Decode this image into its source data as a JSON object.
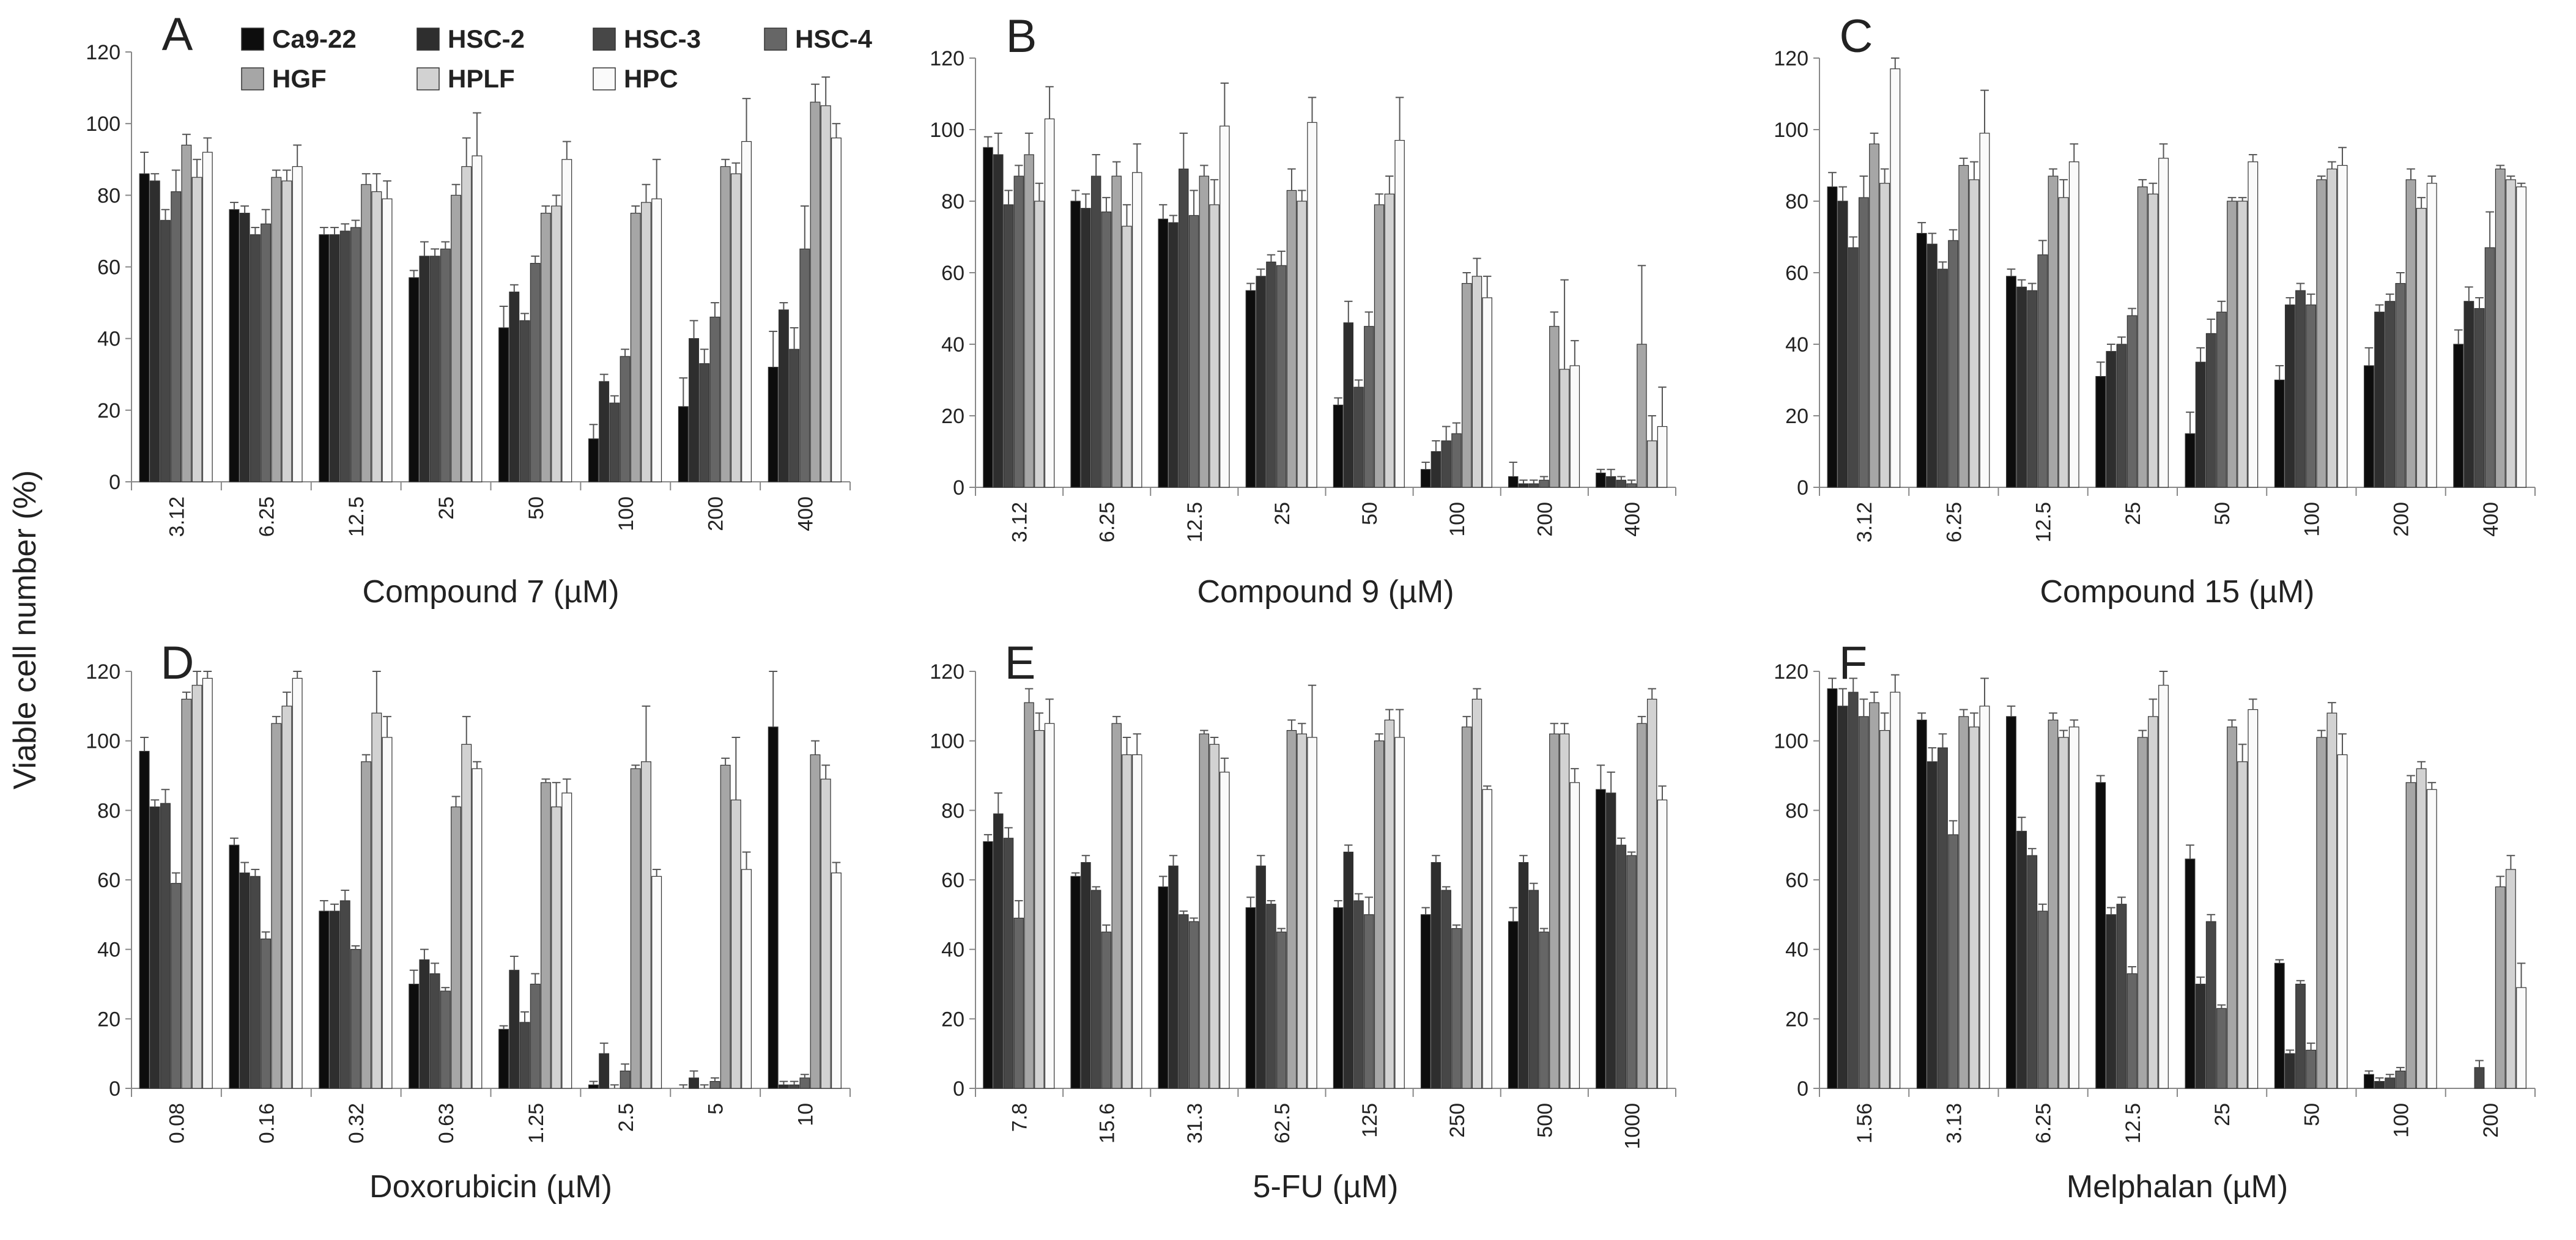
{
  "figure": {
    "ylabel": "Viable cell number (%)"
  },
  "colors": {
    "Ca9-22": "#0d0d0d",
    "HSC-2": "#2e2e2e",
    "HSC-3": "#474747",
    "HSC-4": "#666666",
    "HGF": "#a6a6a6",
    "HPLF": "#d2d2d2",
    "HPC": "#fafafa"
  },
  "legend": [
    "Ca9-22",
    "HSC-2",
    "HSC-3",
    "HSC-4",
    "HGF",
    "HPLF",
    "HPC"
  ],
  "chart_data": [
    {
      "type": "bar",
      "letter": "A",
      "xlabel": "Compound 7 (µM)",
      "ylim": [
        0,
        120
      ],
      "yticks": [
        0,
        20,
        40,
        60,
        80,
        100,
        120
      ],
      "categories": [
        "3.12",
        "6.25",
        "12.5",
        "25",
        "50",
        "100",
        "200",
        "400"
      ],
      "series": [
        {
          "name": "Ca9-22",
          "values": [
            86,
            76,
            69,
            57,
            43,
            12,
            21,
            32
          ],
          "errors": [
            6,
            2,
            2,
            2,
            6,
            4,
            8,
            10
          ]
        },
        {
          "name": "HSC-2",
          "values": [
            84,
            75,
            69,
            63,
            53,
            28,
            40,
            48
          ],
          "errors": [
            2,
            2,
            2,
            4,
            2,
            2,
            5,
            2
          ]
        },
        {
          "name": "HSC-3",
          "values": [
            73,
            69,
            70,
            63,
            45,
            22,
            33,
            37
          ],
          "errors": [
            3,
            2,
            2,
            2,
            2,
            2,
            4,
            6
          ]
        },
        {
          "name": "HSC-4",
          "values": [
            81,
            72,
            71,
            65,
            61,
            35,
            46,
            65
          ],
          "errors": [
            6,
            4,
            2,
            2,
            2,
            2,
            4,
            12
          ]
        },
        {
          "name": "HGF",
          "values": [
            94,
            85,
            83,
            80,
            75,
            75,
            88,
            106
          ],
          "errors": [
            3,
            2,
            3,
            3,
            2,
            2,
            2,
            5
          ]
        },
        {
          "name": "HPLF",
          "values": [
            85,
            84,
            81,
            88,
            77,
            78,
            86,
            105
          ],
          "errors": [
            5,
            3,
            5,
            8,
            3,
            5,
            3,
            8
          ]
        },
        {
          "name": "HPC",
          "values": [
            92,
            88,
            79,
            91,
            90,
            79,
            95,
            96
          ],
          "errors": [
            4,
            6,
            5,
            12,
            5,
            11,
            12,
            4
          ]
        }
      ]
    },
    {
      "type": "bar",
      "letter": "B",
      "xlabel": "Compound 9 (µM)",
      "ylim": [
        0,
        120
      ],
      "yticks": [
        0,
        20,
        40,
        60,
        80,
        100,
        120
      ],
      "categories": [
        "3.12",
        "6.25",
        "12.5",
        "25",
        "50",
        "100",
        "200",
        "400"
      ],
      "series": [
        {
          "name": "Ca9-22",
          "values": [
            95,
            80,
            75,
            55,
            23,
            5,
            3,
            4
          ],
          "errors": [
            3,
            3,
            4,
            2,
            2,
            2,
            4,
            1
          ]
        },
        {
          "name": "HSC-2",
          "values": [
            93,
            78,
            74,
            59,
            46,
            10,
            1,
            3
          ],
          "errors": [
            6,
            4,
            2,
            2,
            6,
            3,
            1,
            2
          ]
        },
        {
          "name": "HSC-3",
          "values": [
            79,
            87,
            89,
            63,
            28,
            13,
            1,
            2
          ],
          "errors": [
            4,
            6,
            10,
            2,
            2,
            4,
            1,
            1
          ]
        },
        {
          "name": "HSC-4",
          "values": [
            87,
            77,
            76,
            62,
            45,
            15,
            2,
            1
          ],
          "errors": [
            3,
            4,
            7,
            4,
            4,
            3,
            1,
            1
          ]
        },
        {
          "name": "HGF",
          "values": [
            93,
            87,
            87,
            83,
            79,
            57,
            45,
            40
          ],
          "errors": [
            6,
            4,
            3,
            6,
            3,
            3,
            4,
            22
          ]
        },
        {
          "name": "HPLF",
          "values": [
            80,
            73,
            79,
            80,
            82,
            59,
            33,
            13
          ],
          "errors": [
            5,
            6,
            7,
            3,
            5,
            5,
            25,
            7
          ]
        },
        {
          "name": "HPC",
          "values": [
            103,
            88,
            101,
            102,
            97,
            53,
            34,
            17
          ],
          "errors": [
            9,
            8,
            12,
            7,
            12,
            6,
            7,
            11
          ]
        }
      ]
    },
    {
      "type": "bar",
      "letter": "C",
      "xlabel": "Compound 15 (µM)",
      "ylim": [
        0,
        120
      ],
      "yticks": [
        0,
        20,
        40,
        60,
        80,
        100,
        120
      ],
      "categories": [
        "3.12",
        "6.25",
        "12.5",
        "25",
        "50",
        "100",
        "200",
        "400"
      ],
      "series": [
        {
          "name": "Ca9-22",
          "values": [
            84,
            71,
            59,
            31,
            15,
            30,
            34,
            40
          ],
          "errors": [
            4,
            3,
            2,
            4,
            6,
            4,
            5,
            4
          ]
        },
        {
          "name": "HSC-2",
          "values": [
            80,
            68,
            56,
            38,
            35,
            51,
            49,
            52
          ],
          "errors": [
            4,
            3,
            2,
            2,
            4,
            2,
            2,
            4
          ]
        },
        {
          "name": "HSC-3",
          "values": [
            67,
            61,
            55,
            40,
            43,
            55,
            52,
            50
          ],
          "errors": [
            3,
            2,
            2,
            2,
            4,
            2,
            2,
            3
          ]
        },
        {
          "name": "HSC-4",
          "values": [
            81,
            69,
            65,
            48,
            49,
            51,
            57,
            67
          ],
          "errors": [
            6,
            3,
            4,
            2,
            3,
            3,
            3,
            10
          ]
        },
        {
          "name": "HGF",
          "values": [
            96,
            90,
            87,
            84,
            80,
            86,
            86,
            89
          ],
          "errors": [
            3,
            2,
            2,
            2,
            1,
            1,
            3,
            1
          ]
        },
        {
          "name": "HPLF",
          "values": [
            85,
            86,
            81,
            82,
            80,
            89,
            78,
            86
          ],
          "errors": [
            4,
            5,
            5,
            3,
            1,
            2,
            3,
            1
          ]
        },
        {
          "name": "HPC",
          "values": [
            117,
            99,
            91,
            92,
            91,
            90,
            85,
            84
          ],
          "errors": [
            3,
            12,
            5,
            4,
            2,
            5,
            2,
            1
          ]
        }
      ]
    },
    {
      "type": "bar",
      "letter": "D",
      "xlabel": "Doxorubicin (µM)",
      "ylim": [
        0,
        120
      ],
      "yticks": [
        0,
        20,
        40,
        60,
        80,
        100,
        120
      ],
      "categories": [
        "0.08",
        "0.16",
        "0.32",
        "0.63",
        "1.25",
        "2.5",
        "5",
        "10"
      ],
      "series": [
        {
          "name": "Ca9-22",
          "values": [
            97,
            70,
            51,
            30,
            17,
            1,
            0,
            104
          ],
          "errors": [
            4,
            2,
            3,
            4,
            1,
            1,
            1,
            16
          ]
        },
        {
          "name": "HSC-2",
          "values": [
            81,
            62,
            51,
            37,
            34,
            10,
            3,
            1
          ],
          "errors": [
            2,
            3,
            2,
            3,
            4,
            3,
            2,
            1
          ]
        },
        {
          "name": "HSC-3",
          "values": [
            82,
            61,
            54,
            33,
            19,
            0,
            0,
            1
          ],
          "errors": [
            4,
            2,
            3,
            3,
            3,
            1,
            1,
            1
          ]
        },
        {
          "name": "HSC-4",
          "values": [
            59,
            43,
            40,
            28,
            30,
            5,
            2,
            3
          ],
          "errors": [
            3,
            2,
            1,
            1,
            3,
            2,
            1,
            1
          ]
        },
        {
          "name": "HGF",
          "values": [
            112,
            105,
            94,
            81,
            88,
            92,
            93,
            96
          ],
          "errors": [
            2,
            2,
            2,
            3,
            1,
            1,
            2,
            4
          ]
        },
        {
          "name": "HPLF",
          "values": [
            116,
            110,
            108,
            99,
            81,
            94,
            83,
            89
          ],
          "errors": [
            4,
            4,
            12,
            8,
            7,
            16,
            18,
            4
          ]
        },
        {
          "name": "HPC",
          "values": [
            118,
            118,
            101,
            92,
            85,
            61,
            63,
            62
          ],
          "errors": [
            4,
            2,
            6,
            2,
            4,
            2,
            5,
            3
          ]
        }
      ]
    },
    {
      "type": "bar",
      "letter": "E",
      "xlabel": "5-FU (µM)",
      "ylim": [
        0,
        120
      ],
      "yticks": [
        0,
        20,
        40,
        60,
        80,
        100,
        120
      ],
      "categories": [
        "7.8",
        "15.6",
        "31.3",
        "62.5",
        "125",
        "250",
        "500",
        "1000"
      ],
      "series": [
        {
          "name": "Ca9-22",
          "values": [
            71,
            61,
            58,
            52,
            52,
            50,
            48,
            86
          ],
          "errors": [
            2,
            1,
            3,
            3,
            2,
            2,
            4,
            7
          ]
        },
        {
          "name": "HSC-2",
          "values": [
            79,
            65,
            64,
            64,
            68,
            65,
            65,
            85
          ],
          "errors": [
            6,
            2,
            3,
            3,
            2,
            2,
            2,
            6
          ]
        },
        {
          "name": "HSC-3",
          "values": [
            72,
            57,
            50,
            53,
            54,
            57,
            57,
            70
          ],
          "errors": [
            3,
            1,
            1,
            1,
            2,
            1,
            2,
            2
          ]
        },
        {
          "name": "HSC-4",
          "values": [
            49,
            45,
            48,
            45,
            50,
            46,
            45,
            67
          ],
          "errors": [
            5,
            2,
            1,
            1,
            5,
            1,
            1,
            1
          ]
        },
        {
          "name": "HGF",
          "values": [
            111,
            105,
            102,
            103,
            100,
            104,
            102,
            105
          ],
          "errors": [
            4,
            2,
            1,
            3,
            2,
            3,
            3,
            2
          ]
        },
        {
          "name": "HPLF",
          "values": [
            103,
            96,
            99,
            102,
            106,
            112,
            102,
            112
          ],
          "errors": [
            5,
            5,
            2,
            3,
            3,
            3,
            3,
            3
          ]
        },
        {
          "name": "HPC",
          "values": [
            105,
            96,
            91,
            101,
            101,
            86,
            88,
            83
          ],
          "errors": [
            7,
            6,
            4,
            15,
            8,
            1,
            4,
            4
          ]
        }
      ]
    },
    {
      "type": "bar",
      "letter": "F",
      "xlabel": "Melphalan (µM)",
      "ylim": [
        0,
        120
      ],
      "yticks": [
        0,
        20,
        40,
        60,
        80,
        100,
        120
      ],
      "categories": [
        "1.56",
        "3.13",
        "6.25",
        "12.5",
        "25",
        "50",
        "100",
        "200"
      ],
      "series": [
        {
          "name": "Ca9-22",
          "values": [
            115,
            106,
            107,
            88,
            66,
            36,
            4,
            0
          ],
          "errors": [
            3,
            2,
            3,
            2,
            4,
            1,
            1,
            0
          ]
        },
        {
          "name": "HSC-2",
          "values": [
            110,
            94,
            74,
            50,
            30,
            10,
            2,
            0
          ],
          "errors": [
            5,
            4,
            4,
            2,
            2,
            1,
            1,
            0
          ]
        },
        {
          "name": "HSC-3",
          "values": [
            114,
            98,
            67,
            53,
            48,
            30,
            3,
            6
          ],
          "errors": [
            4,
            4,
            2,
            2,
            2,
            1,
            1,
            2
          ]
        },
        {
          "name": "HSC-4",
          "values": [
            107,
            73,
            51,
            33,
            23,
            11,
            5,
            0
          ],
          "errors": [
            5,
            4,
            2,
            2,
            1,
            2,
            1,
            0
          ]
        },
        {
          "name": "HGF",
          "values": [
            111,
            107,
            106,
            101,
            104,
            101,
            88,
            58
          ],
          "errors": [
            3,
            2,
            2,
            2,
            2,
            2,
            2,
            3
          ]
        },
        {
          "name": "HPLF",
          "values": [
            103,
            104,
            101,
            107,
            94,
            108,
            92,
            63
          ],
          "errors": [
            5,
            4,
            2,
            5,
            5,
            3,
            2,
            4
          ]
        },
        {
          "name": "HPC",
          "values": [
            114,
            110,
            104,
            116,
            109,
            96,
            86,
            29
          ],
          "errors": [
            5,
            8,
            2,
            4,
            3,
            6,
            2,
            7
          ]
        }
      ]
    }
  ]
}
